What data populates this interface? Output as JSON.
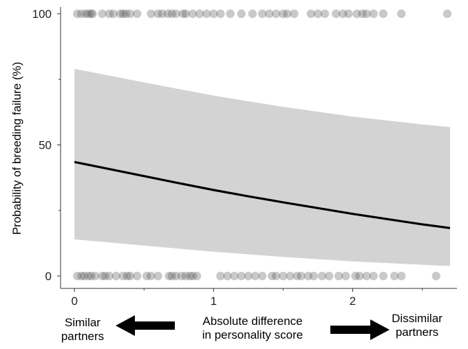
{
  "chart_data": {
    "type": "scatter",
    "title": "",
    "xlabel": "Absolute difference in personality score",
    "xlabel_lines": [
      "Absolute difference",
      "in personality score"
    ],
    "ylabel": "Probability of breeding failure  (%)",
    "xlim": [
      -0.1,
      2.75
    ],
    "ylim": [
      0,
      100
    ],
    "x_ticks": [
      0,
      1,
      2
    ],
    "y_ticks": [
      0,
      50,
      100
    ],
    "grid": false,
    "fit_curve": {
      "x": [
        0,
        0.25,
        0.5,
        0.75,
        1.0,
        1.25,
        1.5,
        1.75,
        2.0,
        2.25,
        2.5,
        2.7
      ],
      "y": [
        43.5,
        40.8,
        38.1,
        35.4,
        32.8,
        30.4,
        28.1,
        25.9,
        23.7,
        21.7,
        19.7,
        18.3
      ]
    },
    "confidence_band": {
      "x": [
        0,
        0.5,
        1.0,
        1.5,
        2.0,
        2.5,
        2.7
      ],
      "upper": [
        79,
        73.8,
        68.8,
        64.5,
        60.8,
        57.8,
        56.8
      ],
      "lower": [
        14,
        11.6,
        9.3,
        7.3,
        5.6,
        4.3,
        3.8
      ]
    },
    "points": [
      {
        "series": "failure",
        "y": 100,
        "x": [
          0.02,
          0.05,
          0.08,
          0.1,
          0.12,
          0.13,
          0.2,
          0.25,
          0.28,
          0.33,
          0.35,
          0.37,
          0.4,
          0.45,
          0.55,
          0.6,
          0.63,
          0.67,
          0.7,
          0.73,
          0.78,
          0.8,
          0.85,
          0.9,
          0.95,
          1.0,
          1.05,
          1.12,
          1.2,
          1.28,
          1.35,
          1.4,
          1.45,
          1.5,
          1.53,
          1.58,
          1.7,
          1.75,
          1.8,
          1.88,
          1.93,
          1.97,
          2.03,
          2.07,
          2.1,
          2.15,
          2.22,
          2.35,
          2.68
        ]
      },
      {
        "series": "success",
        "y": 0,
        "x": [
          0.02,
          0.05,
          0.07,
          0.1,
          0.12,
          0.15,
          0.2,
          0.22,
          0.25,
          0.3,
          0.35,
          0.38,
          0.4,
          0.45,
          0.52,
          0.55,
          0.6,
          0.68,
          0.7,
          0.73,
          0.77,
          0.8,
          0.83,
          0.85,
          0.88,
          1.05,
          1.1,
          1.15,
          1.2,
          1.25,
          1.3,
          1.35,
          1.42,
          1.45,
          1.5,
          1.55,
          1.6,
          1.63,
          1.68,
          1.72,
          1.78,
          1.83,
          1.9,
          1.95,
          2.02,
          2.05,
          2.1,
          2.15,
          2.22,
          2.3,
          2.35,
          2.6
        ]
      }
    ]
  },
  "annotations": {
    "left_label_lines": [
      "Similar",
      "partners"
    ],
    "right_label_lines": [
      "Dissimilar",
      "partners"
    ]
  },
  "colors": {
    "band": "#d3d3d3",
    "curve": "#000000",
    "point": "#4d4d4d",
    "axis": "#333333"
  }
}
